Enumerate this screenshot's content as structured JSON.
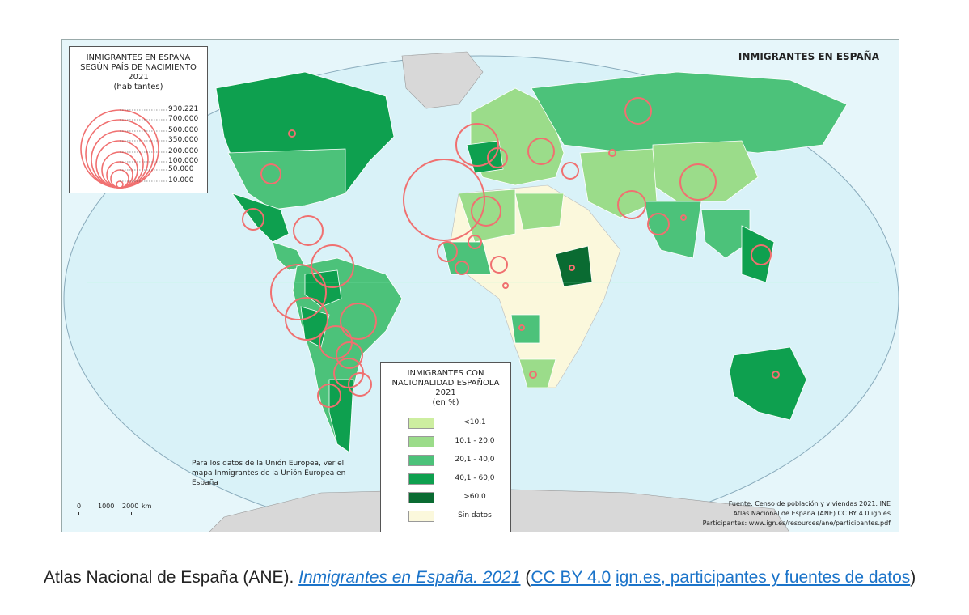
{
  "map": {
    "title": "INMIGRANTES EN ESPAÑA",
    "circle_legend": {
      "title_lines": [
        "INMIGRANTES EN ESPAÑA",
        "SEGÚN PAÍS DE NACIMIENTO",
        "2021",
        "(habitantes)"
      ],
      "values": [
        "930.221",
        "700.000",
        "500.000",
        "350.000",
        "200.000",
        "100.000",
        "50.000",
        "10.000"
      ],
      "circle_color": "#f07070"
    },
    "fill_legend": {
      "title_lines": [
        "INMIGRANTES CON",
        "NACIONALIDAD ESPAÑOLA",
        "2021",
        "(en %)"
      ],
      "classes": [
        {
          "label": "<10,1",
          "color": "#cdeea0"
        },
        {
          "label": "10,1 - 20,0",
          "color": "#9bdc8a"
        },
        {
          "label": "20,1 - 40,0",
          "color": "#4cc27a"
        },
        {
          "label": "40,1 - 60,0",
          "color": "#0ea04f"
        },
        {
          "label": ">60,0",
          "color": "#0a6b32"
        },
        {
          "label": "Sin datos",
          "color": "#fbf8dc"
        }
      ]
    },
    "eu_note": "Para los datos de la Unión Europea, ver el mapa Inmigrantes de la Unión Europea en España",
    "scale": {
      "labels": [
        "0",
        "1000",
        "2000",
        "km"
      ]
    },
    "credits": [
      "Fuente: Censo de población y viviendas 2021. INE",
      "Atlas Nacional de España (ANE) CC BY 4.0 ign.es",
      "Participantes: www.ign.es/resources/ane/participantes.pdf"
    ],
    "colors": {
      "ocean": "#e6f6fa",
      "no_data_land": "#d8d8d8",
      "circle": "#f07070"
    }
  },
  "caption": {
    "prefix": "Atlas Nacional de España (ANE). ",
    "link_title": "Inmigrantes en España. 2021",
    "open_paren": " (",
    "link_license": "CC BY 4.0",
    "space": " ",
    "link_source": "ign.es, participantes y fuentes de datos",
    "close_paren": ")"
  }
}
